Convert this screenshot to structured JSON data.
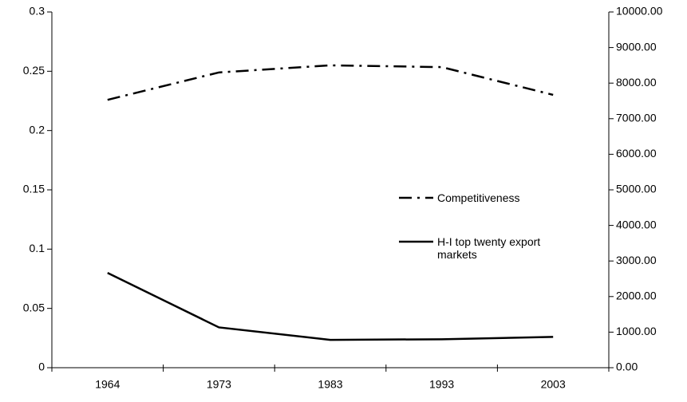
{
  "chart_data": {
    "type": "line",
    "categories": [
      "1964",
      "1973",
      "1983",
      "1993",
      "2003"
    ],
    "series": [
      {
        "name": "Competitiveness",
        "color": "#000000",
        "dash": "dash-dot",
        "axis": "y2",
        "values": [
          7530,
          8300,
          8500,
          8450,
          7670
        ]
      },
      {
        "name": "H-I top twenty export markets",
        "color": "#000000",
        "dash": "solid",
        "values": [
          0.08,
          0.034,
          0.0235,
          0.024,
          0.026
        ]
      }
    ],
    "ylim": [
      0,
      0.3
    ],
    "yticks": [
      0,
      0.05,
      0.1,
      0.15,
      0.2,
      0.25,
      0.3
    ],
    "y2lim": [
      0,
      10000
    ],
    "y2ticks": [
      {
        "value": 0,
        "label": "0.00"
      },
      {
        "value": 1000,
        "label": "1000.00"
      },
      {
        "value": 2000,
        "label": "2000.00"
      },
      {
        "value": 3000,
        "label": "3000.00"
      },
      {
        "value": 4000,
        "label": "4000.00"
      },
      {
        "value": 5000,
        "label": "5000.00"
      },
      {
        "value": 6000,
        "label": "6000.00"
      },
      {
        "value": 7000,
        "label": "7000.00"
      },
      {
        "value": 8000,
        "label": "8000.00"
      },
      {
        "value": 9000,
        "label": "9000.00"
      },
      {
        "value": 10000,
        "label": "10000.00"
      }
    ],
    "grid": false
  }
}
